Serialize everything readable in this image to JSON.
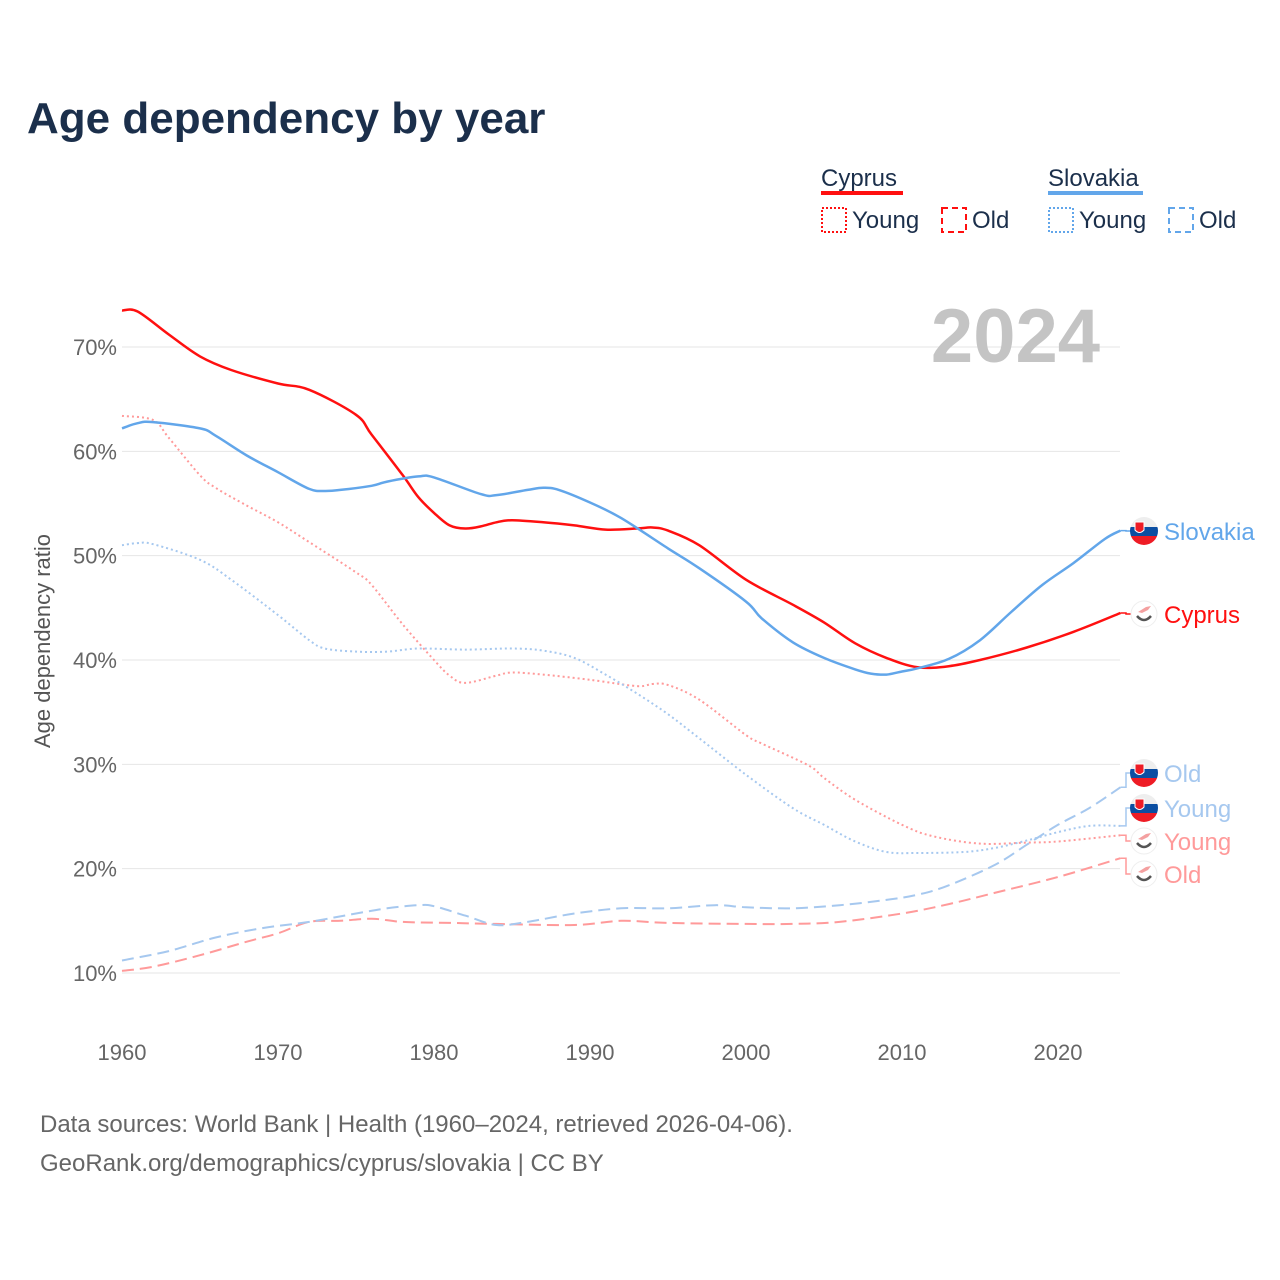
{
  "chart_data": {
    "type": "line",
    "title": "Age dependency by year",
    "ylabel": "Age dependency ratio",
    "xlabel": "",
    "xlim": [
      1960,
      2024
    ],
    "ylim": [
      5,
      75
    ],
    "x_ticks": [
      "1960",
      "1970",
      "1980",
      "1990",
      "2000",
      "2010",
      "2020"
    ],
    "y_ticks": [
      "10%",
      "20%",
      "30%",
      "40%",
      "50%",
      "60%",
      "70%"
    ],
    "y_tick_values": [
      10,
      20,
      30,
      40,
      50,
      60,
      70
    ],
    "year_label": "2024",
    "legend": {
      "groups": [
        {
          "country": "Cyprus",
          "color": "#ff1010",
          "items": [
            "Young",
            "Old"
          ]
        },
        {
          "country": "Slovakia",
          "color": "#62a6ea",
          "items": [
            "Young",
            "Old"
          ]
        }
      ]
    },
    "series": [
      {
        "name": "Cyprus",
        "end_label": "Cyprus",
        "country": "cyprus",
        "style": "solid",
        "color": "#ff1010",
        "points": [
          [
            1960,
            73.5
          ],
          [
            1961,
            73.4
          ],
          [
            1963,
            71.2
          ],
          [
            1965,
            69.1
          ],
          [
            1967,
            67.8
          ],
          [
            1970,
            66.5
          ],
          [
            1972,
            65.9
          ],
          [
            1975,
            63.5
          ],
          [
            1976,
            61.6
          ],
          [
            1978,
            57.7
          ],
          [
            1979,
            55.6
          ],
          [
            1980,
            54.1
          ],
          [
            1981,
            52.9
          ],
          [
            1982,
            52.6
          ],
          [
            1983,
            52.8
          ],
          [
            1984,
            53.2
          ],
          [
            1985,
            53.4
          ],
          [
            1987,
            53.2
          ],
          [
            1989,
            52.9
          ],
          [
            1991,
            52.5
          ],
          [
            1993,
            52.6
          ],
          [
            1994,
            52.7
          ],
          [
            1995,
            52.4
          ],
          [
            1997,
            51.0
          ],
          [
            2000,
            47.7
          ],
          [
            2003,
            45.3
          ],
          [
            2005,
            43.6
          ],
          [
            2007,
            41.6
          ],
          [
            2009,
            40.2
          ],
          [
            2011,
            39.3
          ],
          [
            2013,
            39.4
          ],
          [
            2015,
            40.0
          ],
          [
            2018,
            41.2
          ],
          [
            2021,
            42.7
          ],
          [
            2024,
            44.5
          ]
        ]
      },
      {
        "name": "Slovakia",
        "end_label": "Slovakia",
        "country": "slovakia",
        "style": "solid",
        "color": "#62a6ea",
        "points": [
          [
            1960,
            62.2
          ],
          [
            1961,
            62.7
          ],
          [
            1962,
            62.8
          ],
          [
            1965,
            62.2
          ],
          [
            1966,
            61.5
          ],
          [
            1968,
            59.6
          ],
          [
            1970,
            58.0
          ],
          [
            1972,
            56.4
          ],
          [
            1973,
            56.2
          ],
          [
            1974,
            56.3
          ],
          [
            1976,
            56.7
          ],
          [
            1977,
            57.1
          ],
          [
            1979,
            57.6
          ],
          [
            1980,
            57.5
          ],
          [
            1983,
            55.9
          ],
          [
            1984,
            55.8
          ],
          [
            1986,
            56.3
          ],
          [
            1987,
            56.5
          ],
          [
            1988,
            56.3
          ],
          [
            1990,
            55.1
          ],
          [
            1992,
            53.6
          ],
          [
            1995,
            50.7
          ],
          [
            1997,
            48.8
          ],
          [
            2000,
            45.6
          ],
          [
            2001,
            44.0
          ],
          [
            2003,
            41.7
          ],
          [
            2005,
            40.2
          ],
          [
            2007,
            39.1
          ],
          [
            2008,
            38.7
          ],
          [
            2009,
            38.6
          ],
          [
            2010,
            38.9
          ],
          [
            2011,
            39.2
          ],
          [
            2013,
            40.1
          ],
          [
            2015,
            41.9
          ],
          [
            2017,
            44.6
          ],
          [
            2019,
            47.2
          ],
          [
            2021,
            49.3
          ],
          [
            2023,
            51.6
          ],
          [
            2024,
            52.4
          ]
        ]
      },
      {
        "name": "Cyprus Young",
        "end_label": "Young",
        "country": "cyprus",
        "style": "dotted",
        "color": "#ff9a9a",
        "points": [
          [
            1960,
            63.4
          ],
          [
            1962,
            63.0
          ],
          [
            1963,
            61.3
          ],
          [
            1965,
            57.7
          ],
          [
            1966,
            56.5
          ],
          [
            1968,
            54.8
          ],
          [
            1970,
            53.2
          ],
          [
            1972,
            51.3
          ],
          [
            1975,
            48.4
          ],
          [
            1976,
            47.2
          ],
          [
            1978,
            43.4
          ],
          [
            1980,
            40.0
          ],
          [
            1981,
            38.5
          ],
          [
            1982,
            37.8
          ],
          [
            1984,
            38.5
          ],
          [
            1985,
            38.8
          ],
          [
            1987,
            38.6
          ],
          [
            1990,
            38.1
          ],
          [
            1993,
            37.5
          ],
          [
            1994,
            37.7
          ],
          [
            1995,
            37.6
          ],
          [
            1997,
            36.2
          ],
          [
            2000,
            32.8
          ],
          [
            2001,
            32.0
          ],
          [
            2004,
            29.9
          ],
          [
            2005,
            28.7
          ],
          [
            2007,
            26.6
          ],
          [
            2010,
            24.2
          ],
          [
            2012,
            23.1
          ],
          [
            2015,
            22.4
          ],
          [
            2018,
            22.5
          ],
          [
            2020,
            22.6
          ],
          [
            2024,
            23.2
          ]
        ]
      },
      {
        "name": "Slovakia Young",
        "end_label": "Young",
        "country": "slovakia",
        "style": "dotted",
        "color": "#a6c8ef",
        "points": [
          [
            1960,
            51.0
          ],
          [
            1961,
            51.2
          ],
          [
            1962,
            51.1
          ],
          [
            1965,
            49.6
          ],
          [
            1967,
            47.7
          ],
          [
            1970,
            44.3
          ],
          [
            1972,
            41.9
          ],
          [
            1973,
            41.1
          ],
          [
            1975,
            40.8
          ],
          [
            1977,
            40.8
          ],
          [
            1979,
            41.1
          ],
          [
            1982,
            41.0
          ],
          [
            1985,
            41.1
          ],
          [
            1987,
            40.9
          ],
          [
            1989,
            40.2
          ],
          [
            1991,
            38.6
          ],
          [
            1993,
            36.8
          ],
          [
            1995,
            34.8
          ],
          [
            1997,
            32.5
          ],
          [
            2000,
            29.0
          ],
          [
            2003,
            25.8
          ],
          [
            2005,
            24.2
          ],
          [
            2007,
            22.6
          ],
          [
            2009,
            21.6
          ],
          [
            2011,
            21.5
          ],
          [
            2014,
            21.6
          ],
          [
            2016,
            22.0
          ],
          [
            2018,
            22.7
          ],
          [
            2020,
            23.5
          ],
          [
            2022,
            24.1
          ],
          [
            2024,
            24.1
          ]
        ]
      },
      {
        "name": "Cyprus Old",
        "end_label": "Old",
        "country": "cyprus",
        "style": "dashed",
        "color": "#ff9a9a",
        "points": [
          [
            1960,
            10.2
          ],
          [
            1962,
            10.6
          ],
          [
            1965,
            11.7
          ],
          [
            1968,
            13.0
          ],
          [
            1970,
            13.8
          ],
          [
            1972,
            14.9
          ],
          [
            1974,
            15.0
          ],
          [
            1976,
            15.2
          ],
          [
            1978,
            14.9
          ],
          [
            1981,
            14.8
          ],
          [
            1984,
            14.7
          ],
          [
            1989,
            14.6
          ],
          [
            1992,
            15.0
          ],
          [
            1995,
            14.8
          ],
          [
            2000,
            14.7
          ],
          [
            2003,
            14.7
          ],
          [
            2006,
            14.9
          ],
          [
            2010,
            15.7
          ],
          [
            2013,
            16.6
          ],
          [
            2016,
            17.7
          ],
          [
            2020,
            19.2
          ],
          [
            2024,
            21.0
          ]
        ]
      },
      {
        "name": "Slovakia Old",
        "end_label": "Old",
        "country": "slovakia",
        "style": "dashed",
        "color": "#a6c8ef",
        "points": [
          [
            1960,
            11.2
          ],
          [
            1963,
            12.1
          ],
          [
            1966,
            13.4
          ],
          [
            1969,
            14.3
          ],
          [
            1972,
            14.9
          ],
          [
            1975,
            15.7
          ],
          [
            1977,
            16.2
          ],
          [
            1979,
            16.5
          ],
          [
            1980,
            16.4
          ],
          [
            1982,
            15.5
          ],
          [
            1984,
            14.6
          ],
          [
            1986,
            14.9
          ],
          [
            1989,
            15.7
          ],
          [
            1992,
            16.2
          ],
          [
            1995,
            16.2
          ],
          [
            1998,
            16.5
          ],
          [
            2000,
            16.3
          ],
          [
            2003,
            16.2
          ],
          [
            2006,
            16.5
          ],
          [
            2009,
            17.0
          ],
          [
            2011,
            17.5
          ],
          [
            2013,
            18.4
          ],
          [
            2016,
            20.4
          ],
          [
            2018,
            22.3
          ],
          [
            2020,
            24.2
          ],
          [
            2022,
            25.8
          ],
          [
            2024,
            27.8
          ]
        ]
      }
    ]
  },
  "footer": {
    "line1": "Data sources: World Bank | Health (1960–2024, retrieved 2026-04-06).",
    "line2": "GeoRank.org/demographics/cyprus/slovakia | CC BY"
  }
}
